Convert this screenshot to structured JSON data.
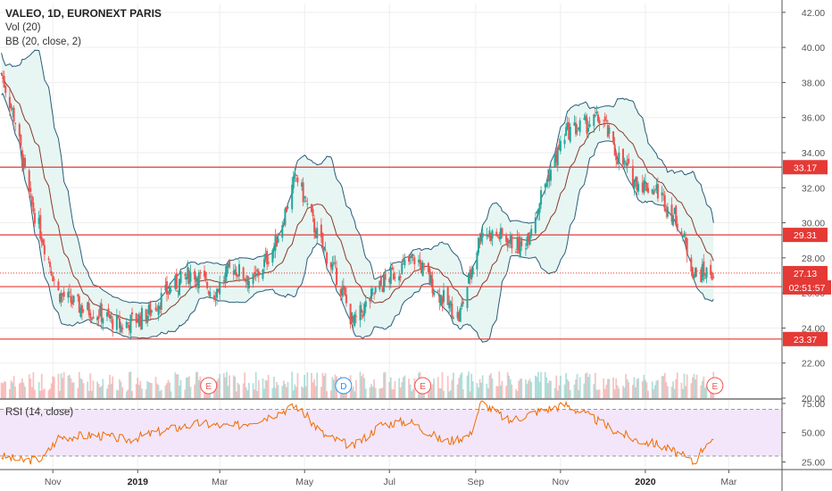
{
  "header": {
    "title": "VALEO, 1D, EURONEXT PARIS",
    "vol_label": "Vol (20)",
    "bb_label": "BB (20, close, 2)",
    "rsi_label": "RSI (14, close)"
  },
  "colors": {
    "up": "#26a69a",
    "down": "#ef5350",
    "bb_band": "#2a5d7a",
    "bb_fill": "#e3f4f1",
    "bb_basis": "#8a3a2a",
    "hline": "#e53935",
    "rsi_line": "#ef6c00",
    "rsi_fill": "#f3e6fb",
    "grid": "#eeeeee",
    "axis_text": "#555555"
  },
  "chart_data": {
    "type": "candlestick",
    "title": "VALEO, 1D, EURONEXT PARIS",
    "x_ticks": [
      "Nov",
      "2019",
      "Mar",
      "May",
      "Jul",
      "Sep",
      "Nov",
      "2020",
      "Mar"
    ],
    "y_ticks": [
      "42.00",
      "40.00",
      "38.00",
      "36.00",
      "34.00",
      "32.00",
      "30.00",
      "28.00",
      "26.00",
      "24.00",
      "22.00",
      "20.00"
    ],
    "y_range": [
      20,
      42.5
    ],
    "horizontal_levels": [
      {
        "value": 33.17,
        "label": "33.17"
      },
      {
        "value": 29.31,
        "label": "29.31"
      },
      {
        "value": 26.36,
        "label": "26.36"
      },
      {
        "value": 23.37,
        "label": "23.37"
      }
    ],
    "last_price": {
      "value": 27.13,
      "label": "27.13",
      "countdown": "02:51:57"
    },
    "close_path": [
      {
        "date": "2018-09-25",
        "close": 38.5
      },
      {
        "date": "2018-10-05",
        "close": 35.8
      },
      {
        "date": "2018-10-15",
        "close": 31.5
      },
      {
        "date": "2018-10-25",
        "close": 29.0
      },
      {
        "date": "2018-11-05",
        "close": 26.0
      },
      {
        "date": "2018-11-20",
        "close": 25.2
      },
      {
        "date": "2018-12-05",
        "close": 24.8
      },
      {
        "date": "2018-12-20",
        "close": 24.1
      },
      {
        "date": "2019-01-08",
        "close": 24.8
      },
      {
        "date": "2019-01-25",
        "close": 26.3
      },
      {
        "date": "2019-02-10",
        "close": 27.2
      },
      {
        "date": "2019-02-25",
        "close": 26.0
      },
      {
        "date": "2019-03-10",
        "close": 27.5
      },
      {
        "date": "2019-03-25",
        "close": 26.6
      },
      {
        "date": "2019-04-10",
        "close": 28.8
      },
      {
        "date": "2019-04-25",
        "close": 32.7
      },
      {
        "date": "2019-05-10",
        "close": 29.3
      },
      {
        "date": "2019-05-25",
        "close": 26.8
      },
      {
        "date": "2019-06-05",
        "close": 24.2
      },
      {
        "date": "2019-06-20",
        "close": 26.0
      },
      {
        "date": "2019-07-05",
        "close": 27.2
      },
      {
        "date": "2019-07-20",
        "close": 28.0
      },
      {
        "date": "2019-08-05",
        "close": 26.0
      },
      {
        "date": "2019-08-20",
        "close": 24.6
      },
      {
        "date": "2019-09-05",
        "close": 29.5
      },
      {
        "date": "2019-09-20",
        "close": 29.2
      },
      {
        "date": "2019-10-05",
        "close": 28.5
      },
      {
        "date": "2019-10-20",
        "close": 32.0
      },
      {
        "date": "2019-11-05",
        "close": 35.2
      },
      {
        "date": "2019-11-20",
        "close": 35.6
      },
      {
        "date": "2019-12-01",
        "close": 36.0
      },
      {
        "date": "2019-12-10",
        "close": 34.0
      },
      {
        "date": "2019-12-25",
        "close": 32.4
      },
      {
        "date": "2020-01-10",
        "close": 31.8
      },
      {
        "date": "2020-01-25",
        "close": 30.0
      },
      {
        "date": "2020-02-05",
        "close": 27.1
      },
      {
        "date": "2020-02-19",
        "close": 27.13
      }
    ],
    "events": [
      {
        "label": "E",
        "date": "2019-02-21"
      },
      {
        "label": "D",
        "date": "2019-05-29"
      },
      {
        "label": "E",
        "date": "2019-07-25"
      },
      {
        "label": "E",
        "date": "2020-02-20"
      }
    ],
    "rsi": {
      "y_ticks": [
        "75.00",
        "50.00",
        "25.00"
      ],
      "y_range": [
        20,
        78
      ],
      "bands": [
        70,
        30
      ],
      "path": [
        {
          "date": "2018-09-25",
          "value": 30
        },
        {
          "date": "2018-10-10",
          "value": 26
        },
        {
          "date": "2018-10-25",
          "value": 28
        },
        {
          "date": "2018-11-05",
          "value": 46
        },
        {
          "date": "2018-12-01",
          "value": 48
        },
        {
          "date": "2018-12-25",
          "value": 44
        },
        {
          "date": "2019-01-20",
          "value": 52
        },
        {
          "date": "2019-02-15",
          "value": 58
        },
        {
          "date": "2019-03-10",
          "value": 55
        },
        {
          "date": "2019-04-05",
          "value": 64
        },
        {
          "date": "2019-04-25",
          "value": 73
        },
        {
          "date": "2019-05-15",
          "value": 48
        },
        {
          "date": "2019-06-05",
          "value": 38
        },
        {
          "date": "2019-06-25",
          "value": 57
        },
        {
          "date": "2019-07-15",
          "value": 60
        },
        {
          "date": "2019-08-10",
          "value": 42
        },
        {
          "date": "2019-08-28",
          "value": 48
        },
        {
          "date": "2019-09-05",
          "value": 76
        },
        {
          "date": "2019-09-25",
          "value": 60
        },
        {
          "date": "2019-10-15",
          "value": 68
        },
        {
          "date": "2019-11-05",
          "value": 74
        },
        {
          "date": "2019-11-25",
          "value": 62
        },
        {
          "date": "2019-12-10",
          "value": 52
        },
        {
          "date": "2019-12-25",
          "value": 44
        },
        {
          "date": "2020-01-10",
          "value": 40
        },
        {
          "date": "2020-01-25",
          "value": 32
        },
        {
          "date": "2020-02-05",
          "value": 24
        },
        {
          "date": "2020-02-15",
          "value": 44
        },
        {
          "date": "2020-02-20",
          "value": 40
        }
      ]
    }
  }
}
